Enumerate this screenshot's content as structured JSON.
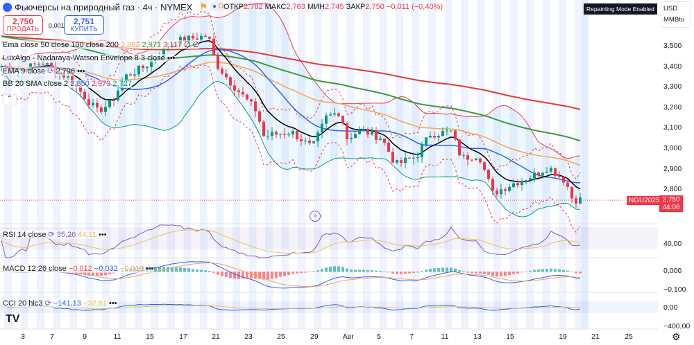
{
  "header": {
    "symbol_title": "Фьючерсы на природный газ · 4ч · NYMEX",
    "o_label": "ОТКР",
    "o": "2,762",
    "h_label": "МАКС",
    "h": "2,763",
    "l_label": "МИН",
    "l": "2,745",
    "c_label": "ЗАКР",
    "c": "2,750",
    "change": "−0,011 (−0,40%)",
    "d_badge": "D"
  },
  "trade": {
    "sell_price": "2,750",
    "sell_label": "ПРОДАТЬ",
    "spread": "0,001",
    "buy_price": "2,751",
    "buy_label": "КУПИТЬ"
  },
  "indicators": {
    "ema": {
      "label": "Ema close 50 close 100 close 200",
      "v1": "2,883",
      "v2": "2,971",
      "v3": "3,117",
      "extra": "∅ ∅"
    },
    "lux": {
      "label": "LuxAlgo - Nadaraya-Watson Envelope 8 3 close"
    },
    "ema9": {
      "label": "EMA 9 close",
      "v": "2,796"
    },
    "bb": {
      "label": "BB 20 SMA close 2",
      "v1": "2,850",
      "v2": "2,973",
      "v3": "2,727"
    },
    "rsi": {
      "label": "RSI 14 close",
      "v1": "35,26",
      "v2": "44,11"
    },
    "macd": {
      "label": "MACD 12 26 close",
      "v1": "−0,012",
      "v2": "−0,032",
      "v3": "−0,019"
    },
    "cci": {
      "label": "CCI 20 hlc3",
      "v1": "−141,13",
      "v2": "−32,81"
    }
  },
  "repaint_badge": "Repainting Mode Enabled",
  "currency": "USD",
  "unit": "MMBtu",
  "price_axis": [
    "3,500",
    "3,400",
    "3,300",
    "3,200",
    "3,100",
    "3,000",
    "2,900",
    "2,800"
  ],
  "rsi_axis": "40,00",
  "macd_axis": [
    "0,000",
    "−0,100"
  ],
  "cci_axis": [
    "0,00",
    "−400,00"
  ],
  "symbol_tag": "NGU2025",
  "last_price": "2,750",
  "countdown": "44:06",
  "time_axis": [
    "3",
    "7",
    "9",
    "11",
    "15",
    "17",
    "21",
    "23",
    "25",
    "29",
    "Авг",
    "5",
    "7",
    "11",
    "13",
    "15",
    "19",
    "21",
    "25"
  ],
  "colors": {
    "up": "#089981",
    "down": "#f23645",
    "ema50": "#f7a350",
    "ema100": "#3a9b3a",
    "ema200": "#e53935",
    "ema9": "#000000",
    "bb": "#2962ff"
  },
  "chart_data": {
    "type": "candlestick",
    "approx_close": [
      [
        0,
        3.4
      ],
      [
        30,
        3.38
      ],
      [
        60,
        3.42
      ],
      [
        100,
        3.34
      ],
      [
        140,
        3.18
      ],
      [
        160,
        3.22
      ],
      [
        180,
        3.35
      ],
      [
        210,
        3.4
      ],
      [
        250,
        3.52
      ],
      [
        300,
        3.55
      ],
      [
        310,
        3.42
      ],
      [
        330,
        3.33
      ],
      [
        370,
        3.18
      ],
      [
        380,
        3.06
      ],
      [
        420,
        3.08
      ],
      [
        450,
        3.0
      ],
      [
        470,
        3.15
      ],
      [
        490,
        3.18
      ],
      [
        500,
        3.05
      ],
      [
        520,
        3.09
      ],
      [
        550,
        3.05
      ],
      [
        570,
        2.92
      ],
      [
        600,
        2.96
      ],
      [
        620,
        3.07
      ],
      [
        650,
        3.08
      ],
      [
        665,
        2.95
      ],
      [
        690,
        2.97
      ],
      [
        710,
        2.78
      ],
      [
        740,
        2.83
      ],
      [
        770,
        2.87
      ],
      [
        790,
        2.91
      ],
      [
        815,
        2.84
      ],
      [
        825,
        2.75
      ],
      [
        840,
        2.75
      ]
    ],
    "ylim": [
      2.7,
      3.6
    ]
  }
}
